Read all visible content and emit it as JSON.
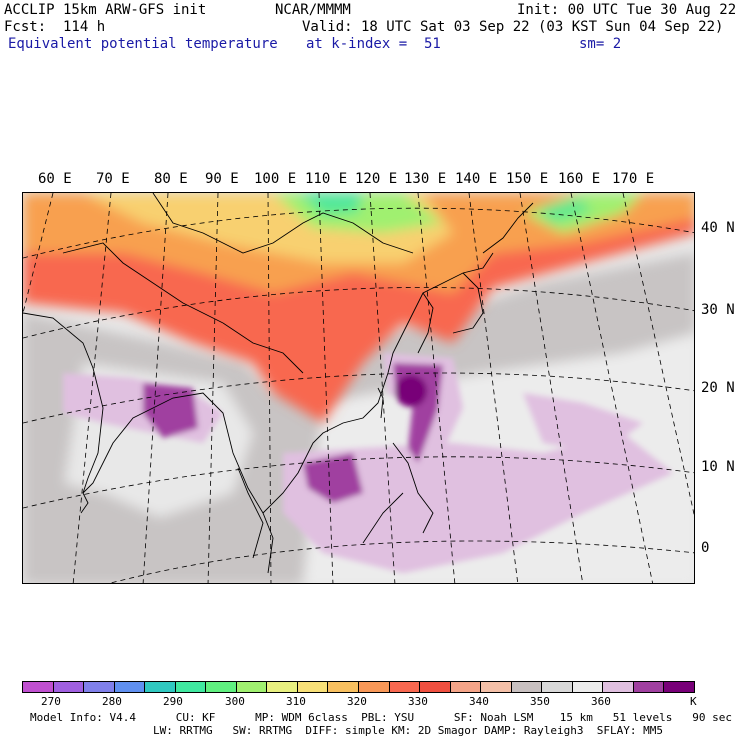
{
  "header": {
    "model_line": "ACCLIP 15km ARW-GFS init",
    "forecast_line": "Fcst:  114 h",
    "field_line": "Equivalent potential temperature",
    "center_line": "NCAR/MMMM",
    "init_line": "Init: 00 UTC Tue 30 Aug 22",
    "valid_line": "Valid: 18 UTC Sat 03 Sep 22 (03 KST Sun 04 Sep 22)",
    "level_line": "at k-index =  51",
    "smooth_line": "sm= 2"
  },
  "map": {
    "lon_labels": [
      "60 E",
      "70 E",
      "80 E",
      "90 E",
      "100 E",
      "110 E",
      "120 E",
      "130 E",
      "140 E",
      "150 E",
      "160 E",
      "170 E"
    ],
    "lat_labels": [
      "40 N",
      "30 N",
      "20 N",
      "10 N",
      "0"
    ]
  },
  "colorbar": {
    "colors": [
      "#c050d0",
      "#a060e0",
      "#8080ea",
      "#6090f0",
      "#30c8c0",
      "#40e8a0",
      "#60f080",
      "#a0f070",
      "#e8f080",
      "#f8e078",
      "#f8c060",
      "#f89858",
      "#f86850",
      "#f05040",
      "#f4a488",
      "#f4c0a8",
      "#c8c0c0",
      "#d8d8d8",
      "#ececec",
      "#e0c0e0",
      "#a040a0",
      "#780078"
    ],
    "tick_labels": [
      "270",
      "280",
      "290",
      "300",
      "310",
      "320",
      "330",
      "340",
      "350",
      "360"
    ],
    "unit": "K"
  },
  "footer": {
    "line1": "Model Info: V4.4      CU: KF      MP: WDM 6class  PBL: YSU      SF: Noah LSM    15 km   51 levels   90 sec",
    "line2": "LW: RRTMG   SW: RRTMG  DIFF: simple KM: 2D Smagor DAMP: Rayleigh3  SFLAY: MM5"
  }
}
